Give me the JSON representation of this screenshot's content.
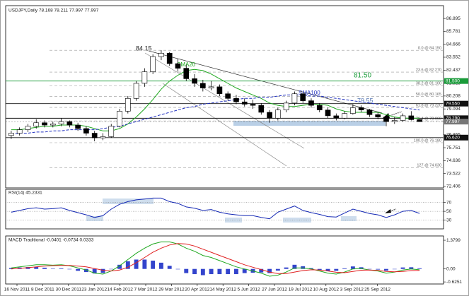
{
  "chart_data": [
    {
      "type": "candlestick",
      "title": "USDJPY,Daily  78.168 78.211 77.997 77.997",
      "ohlc": [
        [
          76.8,
          77.2,
          76.5,
          77.0
        ],
        [
          77.0,
          77.5,
          76.8,
          77.3
        ],
        [
          77.3,
          77.8,
          77.1,
          77.6
        ],
        [
          77.6,
          78.2,
          77.4,
          77.9
        ],
        [
          77.9,
          78.1,
          77.5,
          77.7
        ],
        [
          77.7,
          78.0,
          77.5,
          77.8
        ],
        [
          77.8,
          78.3,
          77.6,
          78.0
        ],
        [
          78.0,
          78.1,
          77.5,
          77.7
        ],
        [
          77.7,
          77.9,
          77.2,
          77.4
        ],
        [
          77.4,
          77.6,
          76.8,
          77.0
        ],
        [
          77.0,
          77.2,
          76.3,
          76.6
        ],
        [
          76.6,
          77.0,
          76.4,
          76.7
        ],
        [
          76.7,
          77.8,
          76.6,
          77.6
        ],
        [
          77.6,
          79.1,
          77.5,
          78.9
        ],
        [
          78.9,
          80.2,
          78.7,
          80.0
        ],
        [
          80.0,
          81.5,
          79.8,
          81.3
        ],
        [
          81.3,
          82.6,
          81.0,
          82.3
        ],
        [
          82.3,
          83.8,
          82.1,
          83.6
        ],
        [
          83.6,
          84.15,
          83.3,
          83.9
        ],
        [
          83.9,
          84.0,
          82.8,
          83.0
        ],
        [
          83.0,
          83.4,
          82.3,
          82.6
        ],
        [
          82.6,
          82.9,
          81.5,
          81.7
        ],
        [
          81.7,
          82.1,
          81.0,
          81.3
        ],
        [
          81.3,
          81.6,
          80.6,
          80.9
        ],
        [
          80.9,
          81.5,
          80.7,
          81.0
        ],
        [
          81.0,
          81.2,
          80.2,
          80.4
        ],
        [
          80.4,
          80.6,
          79.8,
          80.0
        ],
        [
          80.0,
          80.3,
          79.5,
          79.7
        ],
        [
          79.7,
          80.0,
          79.3,
          79.5
        ],
        [
          79.5,
          79.9,
          79.1,
          79.4
        ],
        [
          79.4,
          79.6,
          78.6,
          78.8
        ],
        [
          78.8,
          79.0,
          77.9,
          78.3
        ],
        [
          78.3,
          79.2,
          78.1,
          79.0
        ],
        [
          79.0,
          79.8,
          78.8,
          79.6
        ],
        [
          79.6,
          80.6,
          79.4,
          80.4
        ],
        [
          80.4,
          80.5,
          79.6,
          79.8
        ],
        [
          79.8,
          80.0,
          79.2,
          79.4
        ],
        [
          79.4,
          79.6,
          78.8,
          79.0
        ],
        [
          79.0,
          79.2,
          78.3,
          78.5
        ],
        [
          78.5,
          78.7,
          78.1,
          78.3
        ],
        [
          78.3,
          78.9,
          78.2,
          78.7
        ],
        [
          78.7,
          79.5,
          78.6,
          79.2
        ],
        [
          79.2,
          79.4,
          78.8,
          79.0
        ],
        [
          79.0,
          79.1,
          78.4,
          78.6
        ],
        [
          78.6,
          78.8,
          78.2,
          78.4
        ],
        [
          78.4,
          78.5,
          77.6,
          78.0
        ],
        [
          78.0,
          78.4,
          77.8,
          78.1
        ],
        [
          78.1,
          78.7,
          78.0,
          78.5
        ],
        [
          78.5,
          78.9,
          78.1,
          78.168
        ],
        [
          78.168,
          78.211,
          77.997,
          77.997
        ]
      ],
      "series": [
        {
          "name": "SMA20",
          "color": "#1fa81f",
          "values": [
            77.3,
            77.3,
            77.4,
            77.5,
            77.6,
            77.6,
            77.7,
            77.7,
            77.7,
            77.6,
            77.4,
            77.2,
            77.2,
            77.4,
            77.8,
            78.4,
            79.1,
            79.9,
            80.8,
            81.5,
            82.0,
            82.4,
            82.5,
            82.4,
            82.1,
            81.7,
            81.3,
            80.9,
            80.6,
            80.3,
            80.0,
            79.6,
            79.4,
            79.3,
            79.3,
            79.4,
            79.5,
            79.5,
            79.4,
            79.1,
            78.9,
            78.8,
            78.8,
            78.8,
            78.8,
            78.6,
            78.4,
            78.3,
            78.3,
            78.3
          ]
        },
        {
          "name": "SMA100",
          "color": "#2030c0",
          "dashed": true,
          "values": [
            76.9,
            77.0,
            77.0,
            77.1,
            77.1,
            77.2,
            77.2,
            77.3,
            77.3,
            77.3,
            77.3,
            77.4,
            77.5,
            77.6,
            77.8,
            78.0,
            78.2,
            78.4,
            78.6,
            78.8,
            79.0,
            79.2,
            79.3,
            79.5,
            79.6,
            79.7,
            79.8,
            79.9,
            80.0,
            80.0,
            80.1,
            80.1,
            80.2,
            80.3,
            80.3,
            80.3,
            80.2,
            80.2,
            80.1,
            80.0,
            79.9,
            79.8,
            79.7,
            79.6,
            79.5,
            79.4,
            79.3,
            79.2,
            79.1,
            79.0
          ]
        }
      ],
      "ylim": [
        72.28,
        88.0
      ],
      "yticks": [
        86.895,
        85.781,
        84.666,
        83.552,
        82.437,
        81.323,
        80.208,
        79.094,
        77.979,
        76.865,
        75.751,
        74.636,
        73.522,
        72.406
      ],
      "levels": [
        {
          "value": 81.5,
          "label": "81.500",
          "color": "#1a9b3a"
        },
        {
          "value": 79.55,
          "label": "79.550",
          "color": "#111111"
        },
        {
          "value": 78.29,
          "label": "78.290",
          "color": "#111111"
        },
        {
          "value": 76.62,
          "label": "76.620",
          "color": "#111111"
        }
      ],
      "current": {
        "value": 77.997,
        "label": "77.997",
        "color": "#777777"
      },
      "fib": [
        {
          "value": 84.15,
          "label": "0.0 @ 84.150"
        },
        {
          "value": 82.27,
          "label": "23.6 @ 82.270"
        },
        {
          "value": 81.1,
          "label": "38.2 @ 81.100"
        },
        {
          "value": 80.165,
          "label": "50.0 @ 80.165"
        },
        {
          "value": 79.22,
          "label": "61.8 @ 79.220"
        },
        {
          "value": 78.06,
          "label": "76.4 @ 78.060"
        },
        {
          "value": 76.18,
          "label": "100.0 @ 76.180"
        },
        {
          "value": 74.03,
          "label": "127 @ 74.030"
        }
      ],
      "annotations": [
        "84.15",
        "81.50",
        "79.55"
      ],
      "x_labels": [
        "16 Nov 2011",
        "8 Dec 2011",
        "30 Dec 2011",
        "23 Jan 2012",
        "14 Feb 2012",
        "7 Mar 2012",
        "29 Mar 2012",
        "20 Apr 2012",
        "14 May 2012",
        "5 Jun 2012",
        "27 Jun 2012",
        "19 Jul 2012",
        "10 Aug 2012",
        "3 Sep 2012",
        "25 Sep 2012"
      ]
    },
    {
      "type": "line",
      "title": "RSI(14) 45.2331",
      "color": "#1428b4",
      "values": [
        48,
        52,
        56,
        58,
        55,
        56,
        58,
        52,
        47,
        42,
        36,
        40,
        55,
        66,
        72,
        76,
        78,
        80,
        80,
        72,
        68,
        60,
        57,
        52,
        54,
        48,
        44,
        42,
        40,
        40,
        36,
        33,
        48,
        55,
        62,
        52,
        47,
        43,
        38,
        37,
        46,
        55,
        50,
        45,
        42,
        36,
        42,
        50,
        52,
        45.2331
      ],
      "ylim": [
        10,
        100
      ],
      "yticks": [
        70,
        50,
        30
      ]
    },
    {
      "type": "macd",
      "title": "MACD Traditional -0.0401 -0.0734 0.0333",
      "series": [
        {
          "color": "#1fa81f",
          "values": [
            0.05,
            0.1,
            0.15,
            0.2,
            0.2,
            0.18,
            0.2,
            0.15,
            0.05,
            -0.05,
            -0.2,
            -0.25,
            -0.1,
            0.15,
            0.45,
            0.75,
            1.0,
            1.2,
            1.3,
            1.3,
            1.2,
            1.0,
            0.85,
            0.65,
            0.55,
            0.4,
            0.25,
            0.1,
            0.0,
            -0.1,
            -0.2,
            -0.35,
            -0.3,
            -0.15,
            0.05,
            0.05,
            0.0,
            -0.1,
            -0.2,
            -0.25,
            -0.15,
            0.0,
            0.02,
            -0.05,
            -0.1,
            -0.2,
            -0.15,
            -0.05,
            0.0,
            -0.0401
          ]
        },
        {
          "color": "#e02020",
          "values": [
            0.0,
            0.03,
            0.06,
            0.1,
            0.14,
            0.16,
            0.17,
            0.17,
            0.14,
            0.1,
            0.02,
            -0.06,
            -0.1,
            -0.05,
            0.08,
            0.3,
            0.55,
            0.8,
            1.0,
            1.15,
            1.22,
            1.2,
            1.1,
            0.95,
            0.8,
            0.65,
            0.5,
            0.35,
            0.2,
            0.08,
            -0.03,
            -0.15,
            -0.22,
            -0.22,
            -0.15,
            -0.08,
            -0.04,
            -0.05,
            -0.1,
            -0.16,
            -0.18,
            -0.12,
            -0.06,
            -0.05,
            -0.07,
            -0.12,
            -0.14,
            -0.12,
            -0.08,
            -0.0734
          ]
        }
      ],
      "histogram": {
        "color": "#3344cc",
        "values": [
          0.05,
          0.07,
          0.09,
          0.1,
          0.06,
          0.02,
          0.03,
          -0.02,
          -0.09,
          -0.15,
          -0.22,
          -0.19,
          0.0,
          0.2,
          0.37,
          0.45,
          0.45,
          0.4,
          0.3,
          0.15,
          -0.02,
          -0.2,
          -0.25,
          -0.3,
          -0.25,
          -0.25,
          -0.25,
          -0.25,
          -0.2,
          -0.18,
          -0.17,
          -0.2,
          -0.08,
          0.07,
          0.2,
          0.13,
          0.04,
          -0.05,
          -0.1,
          -0.09,
          0.03,
          0.12,
          0.08,
          0.0,
          -0.03,
          -0.08,
          -0.01,
          0.07,
          0.08,
          0.0333
        ]
      },
      "ylim": [
        -0.724,
        1.586
      ],
      "yticks": [
        1.3799,
        {
          "value": 0,
          "label": "0.00"
        },
        -0.6251
      ]
    }
  ]
}
